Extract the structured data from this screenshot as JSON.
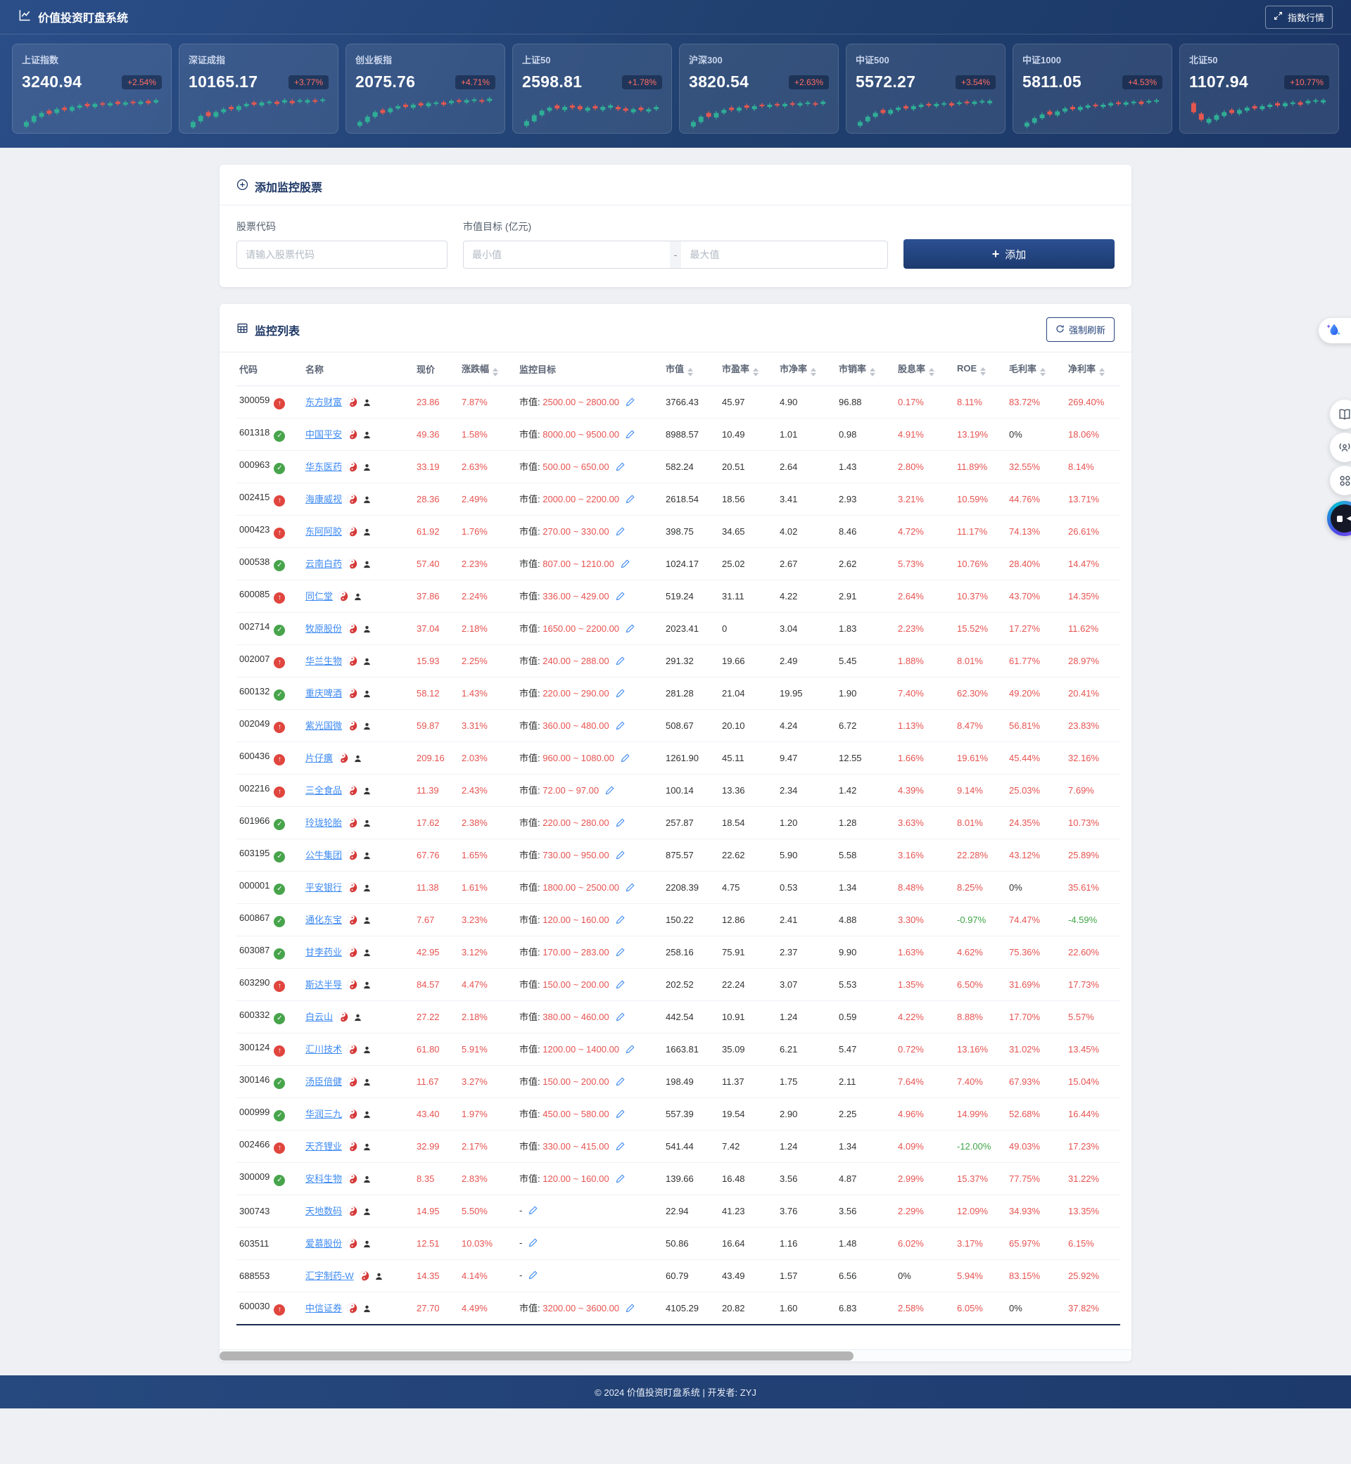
{
  "header": {
    "title": "价值投资盯盘系统",
    "index_button": "指数行情"
  },
  "colors": {
    "accent_navy": "#1e3a6c",
    "up_red": "#e65350",
    "down_green": "#3fa546",
    "link_blue": "#3d8af2",
    "candle_up": "#2fae96",
    "candle_down": "#e4574f",
    "badge_red": "#ff6e66"
  },
  "indices": [
    {
      "name": "上证指数",
      "value": "3240.94",
      "change": "+2.54%",
      "candles": [
        [
          1,
          6,
          1
        ],
        [
          7,
          8,
          1
        ],
        [
          14,
          5,
          1
        ],
        [
          18,
          4,
          0
        ],
        [
          19,
          5,
          1
        ],
        [
          23,
          3,
          0
        ],
        [
          22,
          5,
          1
        ],
        [
          26,
          3,
          1
        ],
        [
          28,
          3,
          0
        ],
        [
          27,
          4,
          1
        ],
        [
          30,
          2,
          0
        ],
        [
          29,
          3,
          1
        ],
        [
          31,
          3,
          0
        ],
        [
          30,
          3,
          1
        ],
        [
          32,
          2,
          0
        ],
        [
          31,
          3,
          1
        ],
        [
          32,
          3,
          0
        ],
        [
          33,
          3,
          1
        ]
      ]
    },
    {
      "name": "深证成指",
      "value": "10165.17",
      "change": "+3.77%",
      "candles": [
        [
          0,
          7,
          1
        ],
        [
          8,
          7,
          1
        ],
        [
          15,
          5,
          0
        ],
        [
          14,
          6,
          1
        ],
        [
          20,
          4,
          1
        ],
        [
          24,
          3,
          0
        ],
        [
          23,
          5,
          1
        ],
        [
          28,
          3,
          1
        ],
        [
          30,
          3,
          0
        ],
        [
          29,
          4,
          1
        ],
        [
          32,
          2,
          1
        ],
        [
          31,
          3,
          0
        ],
        [
          33,
          3,
          1
        ],
        [
          32,
          3,
          0
        ],
        [
          34,
          2,
          1
        ],
        [
          33,
          3,
          1
        ],
        [
          34,
          2,
          0
        ],
        [
          35,
          2,
          1
        ]
      ]
    },
    {
      "name": "创业板指",
      "value": "2075.76",
      "change": "+4.71%",
      "candles": [
        [
          2,
          5,
          1
        ],
        [
          7,
          7,
          1
        ],
        [
          14,
          6,
          1
        ],
        [
          19,
          4,
          0
        ],
        [
          20,
          5,
          1
        ],
        [
          25,
          3,
          1
        ],
        [
          27,
          3,
          0
        ],
        [
          26,
          4,
          1
        ],
        [
          29,
          3,
          0
        ],
        [
          28,
          4,
          1
        ],
        [
          31,
          2,
          1
        ],
        [
          30,
          3,
          0
        ],
        [
          32,
          3,
          1
        ],
        [
          34,
          2,
          0
        ],
        [
          33,
          3,
          1
        ],
        [
          35,
          2,
          1
        ],
        [
          34,
          2,
          0
        ],
        [
          35,
          3,
          1
        ]
      ]
    },
    {
      "name": "上证50",
      "value": "2598.81",
      "change": "+1.78%",
      "candles": [
        [
          2,
          6,
          1
        ],
        [
          8,
          8,
          1
        ],
        [
          16,
          6,
          1
        ],
        [
          22,
          4,
          1
        ],
        [
          25,
          4,
          0
        ],
        [
          23,
          4,
          1
        ],
        [
          26,
          3,
          0
        ],
        [
          24,
          4,
          0
        ],
        [
          22,
          4,
          1
        ],
        [
          25,
          3,
          0
        ],
        [
          23,
          4,
          1
        ],
        [
          26,
          3,
          1
        ],
        [
          24,
          3,
          0
        ],
        [
          22,
          3,
          0
        ],
        [
          20,
          4,
          1
        ],
        [
          23,
          3,
          0
        ],
        [
          21,
          3,
          1
        ],
        [
          24,
          3,
          1
        ]
      ]
    },
    {
      "name": "沪深300",
      "value": "3820.54",
      "change": "+2.63%",
      "candles": [
        [
          1,
          6,
          1
        ],
        [
          7,
          7,
          1
        ],
        [
          14,
          5,
          0
        ],
        [
          13,
          6,
          1
        ],
        [
          19,
          4,
          1
        ],
        [
          23,
          3,
          0
        ],
        [
          22,
          4,
          1
        ],
        [
          26,
          3,
          0
        ],
        [
          24,
          4,
          1
        ],
        [
          28,
          2,
          0
        ],
        [
          27,
          3,
          1
        ],
        [
          29,
          2,
          0
        ],
        [
          28,
          3,
          1
        ],
        [
          30,
          2,
          0
        ],
        [
          29,
          3,
          1
        ],
        [
          31,
          2,
          1
        ],
        [
          30,
          2,
          0
        ],
        [
          31,
          3,
          1
        ]
      ]
    },
    {
      "name": "中证500",
      "value": "5572.27",
      "change": "+3.54%",
      "candles": [
        [
          2,
          5,
          1
        ],
        [
          8,
          6,
          1
        ],
        [
          14,
          5,
          1
        ],
        [
          19,
          4,
          0
        ],
        [
          18,
          5,
          1
        ],
        [
          23,
          3,
          1
        ],
        [
          25,
          3,
          0
        ],
        [
          24,
          4,
          1
        ],
        [
          27,
          3,
          1
        ],
        [
          29,
          2,
          0
        ],
        [
          28,
          3,
          1
        ],
        [
          30,
          2,
          1
        ],
        [
          29,
          3,
          0
        ],
        [
          31,
          2,
          1
        ],
        [
          32,
          2,
          0
        ],
        [
          31,
          3,
          1
        ],
        [
          33,
          2,
          1
        ],
        [
          32,
          3,
          1
        ]
      ]
    },
    {
      "name": "中证1000",
      "value": "5811.05",
      "change": "+4.53%",
      "candles": [
        [
          1,
          5,
          1
        ],
        [
          6,
          6,
          1
        ],
        [
          12,
          5,
          1
        ],
        [
          17,
          4,
          0
        ],
        [
          16,
          5,
          1
        ],
        [
          21,
          4,
          1
        ],
        [
          24,
          3,
          0
        ],
        [
          23,
          4,
          1
        ],
        [
          26,
          3,
          1
        ],
        [
          28,
          2,
          0
        ],
        [
          27,
          3,
          1
        ],
        [
          29,
          3,
          1
        ],
        [
          31,
          2,
          0
        ],
        [
          30,
          3,
          1
        ],
        [
          32,
          2,
          1
        ],
        [
          31,
          3,
          0
        ],
        [
          33,
          2,
          1
        ],
        [
          34,
          2,
          1
        ]
      ]
    },
    {
      "name": "北证50",
      "value": "1107.94",
      "change": "+10.77%",
      "candles": [
        [
          20,
          12,
          0
        ],
        [
          10,
          8,
          0
        ],
        [
          6,
          5,
          1
        ],
        [
          10,
          6,
          1
        ],
        [
          15,
          5,
          1
        ],
        [
          19,
          4,
          0
        ],
        [
          18,
          5,
          1
        ],
        [
          22,
          4,
          1
        ],
        [
          25,
          3,
          0
        ],
        [
          24,
          4,
          1
        ],
        [
          27,
          3,
          1
        ],
        [
          29,
          3,
          0
        ],
        [
          28,
          4,
          1
        ],
        [
          31,
          2,
          1
        ],
        [
          30,
          3,
          0
        ],
        [
          32,
          3,
          1
        ],
        [
          34,
          2,
          1
        ],
        [
          33,
          3,
          1
        ]
      ]
    }
  ],
  "add_form": {
    "title": "添加监控股票",
    "code_label": "股票代码",
    "code_placeholder": "请输入股票代码",
    "target_label": "市值目标 (亿元)",
    "min_placeholder": "最小值",
    "separator": "-",
    "max_placeholder": "最大值",
    "add_button": "添加"
  },
  "watchlist": {
    "title": "监控列表",
    "refresh_button": "强制刷新",
    "target_prefix": "市值:",
    "empty_target": "-",
    "columns": [
      {
        "key": "code",
        "label": "代码",
        "sortable": false
      },
      {
        "key": "name",
        "label": "名称",
        "sortable": false
      },
      {
        "key": "price",
        "label": "现价",
        "sortable": false
      },
      {
        "key": "change",
        "label": "涨跌幅",
        "sortable": true
      },
      {
        "key": "target",
        "label": "监控目标",
        "sortable": false
      },
      {
        "key": "mktcap",
        "label": "市值",
        "sortable": true
      },
      {
        "key": "pe",
        "label": "市盈率",
        "sortable": true
      },
      {
        "key": "pb",
        "label": "市净率",
        "sortable": true
      },
      {
        "key": "ps",
        "label": "市销率",
        "sortable": true
      },
      {
        "key": "dividend",
        "label": "股息率",
        "sortable": true
      },
      {
        "key": "roe",
        "label": "ROE",
        "sortable": true
      },
      {
        "key": "gross",
        "label": "毛利率",
        "sortable": true
      },
      {
        "key": "net",
        "label": "净利率",
        "sortable": true
      }
    ],
    "row_fields": [
      "code",
      "status",
      "name",
      "price",
      "change",
      "target",
      "mktcap",
      "pe",
      "pb",
      "ps",
      "dividend",
      "roe",
      "gross",
      "net"
    ],
    "rows": [
      [
        "300059",
        "up",
        "东方财富",
        "23.86",
        "7.87%",
        "2500.00 ~ 2800.00",
        "3766.43",
        "45.97",
        "4.90",
        "96.88",
        "0.17%",
        "8.11%",
        "83.72%",
        "269.40%"
      ],
      [
        "601318",
        "check",
        "中国平安",
        "49.36",
        "1.58%",
        "8000.00 ~ 9500.00",
        "8988.57",
        "10.49",
        "1.01",
        "0.98",
        "4.91%",
        "13.19%",
        "0%",
        "18.06%"
      ],
      [
        "000963",
        "check",
        "华东医药",
        "33.19",
        "2.63%",
        "500.00 ~ 650.00",
        "582.24",
        "20.51",
        "2.64",
        "1.43",
        "2.80%",
        "11.89%",
        "32.55%",
        "8.14%"
      ],
      [
        "002415",
        "up",
        "海康威视",
        "28.36",
        "2.49%",
        "2000.00 ~ 2200.00",
        "2618.54",
        "18.56",
        "3.41",
        "2.93",
        "3.21%",
        "10.59%",
        "44.76%",
        "13.71%"
      ],
      [
        "000423",
        "up",
        "东阿阿胶",
        "61.92",
        "1.76%",
        "270.00 ~ 330.00",
        "398.75",
        "34.65",
        "4.02",
        "8.46",
        "4.72%",
        "11.17%",
        "74.13%",
        "26.61%"
      ],
      [
        "000538",
        "check",
        "云南白药",
        "57.40",
        "2.23%",
        "807.00 ~ 1210.00",
        "1024.17",
        "25.02",
        "2.67",
        "2.62",
        "5.73%",
        "10.76%",
        "28.40%",
        "14.47%"
      ],
      [
        "600085",
        "up",
        "同仁堂",
        "37.86",
        "2.24%",
        "336.00 ~ 429.00",
        "519.24",
        "31.11",
        "4.22",
        "2.91",
        "2.64%",
        "10.37%",
        "43.70%",
        "14.35%"
      ],
      [
        "002714",
        "check",
        "牧原股份",
        "37.04",
        "2.18%",
        "1650.00 ~ 2200.00",
        "2023.41",
        "0",
        "3.04",
        "1.83",
        "2.23%",
        "15.52%",
        "17.27%",
        "11.62%"
      ],
      [
        "002007",
        "up",
        "华兰生物",
        "15.93",
        "2.25%",
        "240.00 ~ 288.00",
        "291.32",
        "19.66",
        "2.49",
        "5.45",
        "1.88%",
        "8.01%",
        "61.77%",
        "28.97%"
      ],
      [
        "600132",
        "check",
        "重庆啤酒",
        "58.12",
        "1.43%",
        "220.00 ~ 290.00",
        "281.28",
        "21.04",
        "19.95",
        "1.90",
        "7.40%",
        "62.30%",
        "49.20%",
        "20.41%"
      ],
      [
        "002049",
        "up",
        "紫光国微",
        "59.87",
        "3.31%",
        "360.00 ~ 480.00",
        "508.67",
        "20.10",
        "4.24",
        "6.72",
        "1.13%",
        "8.47%",
        "56.81%",
        "23.83%"
      ],
      [
        "600436",
        "up",
        "片仔癀",
        "209.16",
        "2.03%",
        "960.00 ~ 1080.00",
        "1261.90",
        "45.11",
        "9.47",
        "12.55",
        "1.66%",
        "19.61%",
        "45.44%",
        "32.16%"
      ],
      [
        "002216",
        "up",
        "三全食品",
        "11.39",
        "2.43%",
        "72.00 ~ 97.00",
        "100.14",
        "13.36",
        "2.34",
        "1.42",
        "4.39%",
        "9.14%",
        "25.03%",
        "7.69%"
      ],
      [
        "601966",
        "check",
        "玲珑轮胎",
        "17.62",
        "2.38%",
        "220.00 ~ 280.00",
        "257.87",
        "18.54",
        "1.20",
        "1.28",
        "3.63%",
        "8.01%",
        "24.35%",
        "10.73%"
      ],
      [
        "603195",
        "check",
        "公牛集团",
        "67.76",
        "1.65%",
        "730.00 ~ 950.00",
        "875.57",
        "22.62",
        "5.90",
        "5.58",
        "3.16%",
        "22.28%",
        "43.12%",
        "25.89%"
      ],
      [
        "000001",
        "check",
        "平安银行",
        "11.38",
        "1.61%",
        "1800.00 ~ 2500.00",
        "2208.39",
        "4.75",
        "0.53",
        "1.34",
        "8.48%",
        "8.25%",
        "0%",
        "35.61%"
      ],
      [
        "600867",
        "check",
        "通化东宝",
        "7.67",
        "3.23%",
        "120.00 ~ 160.00",
        "150.22",
        "12.86",
        "2.41",
        "4.88",
        "3.30%",
        "-0.97%",
        "74.47%",
        "-4.59%"
      ],
      [
        "603087",
        "check",
        "甘李药业",
        "42.95",
        "3.12%",
        "170.00 ~ 283.00",
        "258.16",
        "75.91",
        "2.37",
        "9.90",
        "1.63%",
        "4.62%",
        "75.36%",
        "22.60%"
      ],
      [
        "603290",
        "up",
        "斯达半导",
        "84.57",
        "4.47%",
        "150.00 ~ 200.00",
        "202.52",
        "22.24",
        "3.07",
        "5.53",
        "1.35%",
        "6.50%",
        "31.69%",
        "17.73%"
      ],
      [
        "600332",
        "check",
        "白云山",
        "27.22",
        "2.18%",
        "380.00 ~ 460.00",
        "442.54",
        "10.91",
        "1.24",
        "0.59",
        "4.22%",
        "8.88%",
        "17.70%",
        "5.57%"
      ],
      [
        "300124",
        "up",
        "汇川技术",
        "61.80",
        "5.91%",
        "1200.00 ~ 1400.00",
        "1663.81",
        "35.09",
        "6.21",
        "5.47",
        "0.72%",
        "13.16%",
        "31.02%",
        "13.45%"
      ],
      [
        "300146",
        "check",
        "汤臣倍健",
        "11.67",
        "3.27%",
        "150.00 ~ 200.00",
        "198.49",
        "11.37",
        "1.75",
        "2.11",
        "7.64%",
        "7.40%",
        "67.93%",
        "15.04%"
      ],
      [
        "000999",
        "check",
        "华润三九",
        "43.40",
        "1.97%",
        "450.00 ~ 580.00",
        "557.39",
        "19.54",
        "2.90",
        "2.25",
        "4.96%",
        "14.99%",
        "52.68%",
        "16.44%"
      ],
      [
        "002466",
        "up",
        "天齐锂业",
        "32.99",
        "2.17%",
        "330.00 ~ 415.00",
        "541.44",
        "7.42",
        "1.24",
        "1.34",
        "4.09%",
        "-12.00%",
        "49.03%",
        "17.23%"
      ],
      [
        "300009",
        "check",
        "安科生物",
        "8.35",
        "2.83%",
        "120.00 ~ 160.00",
        "139.66",
        "16.48",
        "3.56",
        "4.87",
        "2.99%",
        "15.37%",
        "77.75%",
        "31.22%"
      ],
      [
        "300743",
        "",
        "天地数码",
        "14.95",
        "5.50%",
        "",
        "22.94",
        "41.23",
        "3.76",
        "3.56",
        "2.29%",
        "12.09%",
        "34.93%",
        "13.35%"
      ],
      [
        "603511",
        "",
        "爱慕股份",
        "12.51",
        "10.03%",
        "",
        "50.86",
        "16.64",
        "1.16",
        "1.48",
        "6.02%",
        "3.17%",
        "65.97%",
        "6.15%"
      ],
      [
        "688553",
        "",
        "汇宇制药-W",
        "14.35",
        "4.14%",
        "",
        "60.79",
        "43.49",
        "1.57",
        "6.56",
        "0%",
        "5.94%",
        "83.15%",
        "25.92%"
      ],
      [
        "600030",
        "up",
        "中信证券",
        "27.70",
        "4.49%",
        "3200.00 ~ 3600.00",
        "4105.29",
        "20.82",
        "1.60",
        "6.83",
        "2.58%",
        "6.05%",
        "0%",
        "37.82%"
      ]
    ]
  },
  "side_dock": {
    "items": [
      "ai-drop-icon",
      "book-icon",
      "podcast-icon",
      "apps-grid-icon",
      "robot-icon"
    ]
  },
  "footer": {
    "text": "© 2024 价值投资盯盘系统 | 开发者: ZYJ"
  }
}
